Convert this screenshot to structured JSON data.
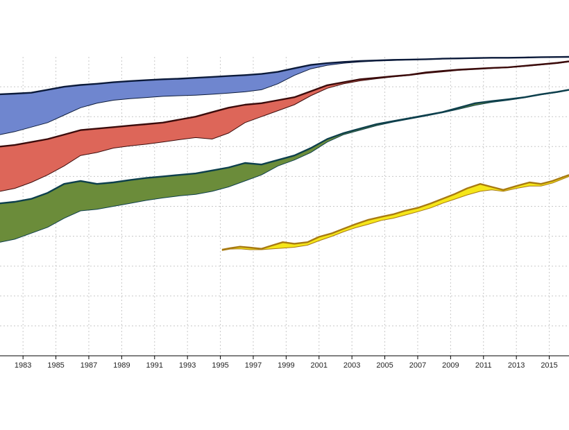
{
  "chart_data": {
    "type": "area",
    "title": "",
    "xlabel": "",
    "ylabel": "",
    "xlim": [
      1981.6,
      2016.2
    ],
    "ylim": [
      0,
      100
    ],
    "grid": true,
    "x_ticks": [
      1983,
      1985,
      1987,
      1989,
      1991,
      1993,
      1995,
      1997,
      1999,
      2001,
      2003,
      2005,
      2007,
      2009,
      2011,
      2013,
      2015
    ],
    "x_tick_labels": [
      "1983",
      "1985",
      "1987",
      "1989",
      "1991",
      "1993",
      "1995",
      "1997",
      "1999",
      "2001",
      "2003",
      "2005",
      "2007",
      "2009",
      "2011",
      "2013",
      "2015"
    ],
    "series": [
      {
        "color": "#6f86cf",
        "edge_color": "#0b1a3a",
        "x": [
          1981.6,
          1982.5,
          1983.5,
          1984.5,
          1985.5,
          1986.5,
          1987.5,
          1988.5,
          1989.5,
          1990.5,
          1991.5,
          1992.5,
          1993.5,
          1994.5,
          1995.5,
          1996.5,
          1997.5,
          1998.5,
          1999.5,
          2000.5,
          2001.5,
          2002.5,
          2003.5,
          2004.5,
          2005.5,
          2006.5,
          2007.5,
          2008.5,
          2009.5,
          2010.5,
          2011.5,
          2012.5,
          2013.5,
          2014.5,
          2015.5,
          2016.2
        ],
        "upper": [
          87.5,
          87.7,
          88.0,
          89.0,
          90.0,
          90.6,
          91.0,
          91.5,
          91.9,
          92.2,
          92.5,
          92.7,
          93.0,
          93.3,
          93.6,
          93.9,
          94.3,
          95.0,
          96.2,
          97.3,
          97.9,
          98.3,
          98.6,
          98.8,
          99.0,
          99.1,
          99.2,
          99.4,
          99.5,
          99.6,
          99.7,
          99.7,
          99.8,
          99.9,
          99.95,
          100.0
        ],
        "lower": [
          74.0,
          75.0,
          76.5,
          78.0,
          80.5,
          83.0,
          84.5,
          85.5,
          86.0,
          86.4,
          86.8,
          87.0,
          87.2,
          87.5,
          87.9,
          88.3,
          89.0,
          91.0,
          93.8,
          96.0,
          97.2,
          97.9,
          98.3,
          98.6,
          98.8,
          99.0,
          99.1,
          99.3,
          99.4,
          99.5,
          99.6,
          99.7,
          99.7,
          99.8,
          99.9,
          100.0
        ]
      },
      {
        "color": "#dd6659",
        "edge_color": "#3b0b0b",
        "x": [
          1981.6,
          1982.5,
          1983.5,
          1984.5,
          1985.5,
          1986.5,
          1987.5,
          1988.5,
          1989.5,
          1990.5,
          1991.5,
          1992.5,
          1993.5,
          1994.5,
          1995.5,
          1996.5,
          1997.5,
          1998.5,
          1999.5,
          2000.5,
          2001.5,
          2002.5,
          2003.5,
          2004.5,
          2005.5,
          2006.5,
          2007.5,
          2008.5,
          2009.5,
          2010.5,
          2011.5,
          2012.5,
          2013.5,
          2014.5,
          2015.5,
          2016.2
        ],
        "upper": [
          70.0,
          70.5,
          71.5,
          72.5,
          74.0,
          75.5,
          76.0,
          76.5,
          77.0,
          77.5,
          78.0,
          79.0,
          80.0,
          81.5,
          83.0,
          84.0,
          84.5,
          85.5,
          86.5,
          88.5,
          90.5,
          91.5,
          92.5,
          93.0,
          93.5,
          94.0,
          94.8,
          95.3,
          95.7,
          96.0,
          96.3,
          96.5,
          97.0,
          97.5,
          98.0,
          98.5
        ],
        "lower": [
          55.0,
          56.0,
          58.0,
          60.5,
          63.5,
          67.0,
          68.0,
          69.5,
          70.2,
          70.8,
          71.5,
          72.3,
          73.0,
          72.5,
          74.5,
          78.0,
          80.0,
          82.0,
          84.0,
          87.0,
          89.5,
          91.0,
          92.0,
          92.7,
          93.3,
          93.8,
          94.5,
          95.0,
          95.5,
          95.8,
          96.1,
          96.4,
          96.8,
          97.3,
          97.8,
          98.3
        ]
      },
      {
        "color": "#6b8c3a",
        "edge_color": "#0d3f4c",
        "x": [
          1981.6,
          1982.5,
          1983.5,
          1984.5,
          1985.5,
          1986.5,
          1987.5,
          1988.5,
          1989.5,
          1990.5,
          1991.5,
          1992.5,
          1993.5,
          1994.5,
          1995.5,
          1996.5,
          1997.5,
          1998.5,
          1999.5,
          2000.5,
          2001.5,
          2002.5,
          2003.5,
          2004.5,
          2005.5,
          2006.5,
          2007.5,
          2008.5,
          2009.5,
          2010.5,
          2011.5,
          2012.5,
          2013.5,
          2014.5,
          2015.5,
          2016.2
        ],
        "upper": [
          51.0,
          51.5,
          52.5,
          54.5,
          57.5,
          58.5,
          57.5,
          58.0,
          58.8,
          59.5,
          60.0,
          60.5,
          61.0,
          62.0,
          63.0,
          64.5,
          64.0,
          65.5,
          67.0,
          69.5,
          72.5,
          74.5,
          76.0,
          77.5,
          78.5,
          79.5,
          80.5,
          81.5,
          83.0,
          84.5,
          85.2,
          85.8,
          86.5,
          87.5,
          88.3,
          89.0
        ],
        "lower": [
          38.0,
          39.0,
          41.0,
          43.0,
          46.0,
          48.5,
          49.0,
          50.0,
          51.0,
          52.0,
          52.8,
          53.5,
          54.0,
          55.0,
          56.5,
          58.5,
          60.5,
          63.5,
          65.5,
          68.0,
          71.5,
          74.0,
          75.5,
          77.0,
          78.2,
          79.2,
          80.2,
          81.3,
          82.5,
          83.8,
          84.8,
          85.5,
          86.3,
          87.3,
          88.1,
          88.8
        ]
      },
      {
        "color": "#f5e619",
        "edge_color": "#a87a12",
        "x": [
          1995.1,
          1995.6,
          1996.2,
          1996.8,
          1997.5,
          1998.2,
          1998.8,
          1999.5,
          2000.3,
          2001.0,
          2001.8,
          2002.5,
          2003.2,
          2004.0,
          2004.8,
          2005.5,
          2006.2,
          2007.0,
          2007.8,
          2008.5,
          2009.2,
          2010.0,
          2010.8,
          2011.5,
          2012.2,
          2013.0,
          2013.8,
          2014.5,
          2015.2,
          2016.2
        ],
        "upper": [
          35.5,
          36.0,
          36.5,
          36.2,
          35.8,
          37.0,
          38.0,
          37.5,
          38.0,
          39.8,
          41.0,
          42.5,
          44.0,
          45.5,
          46.5,
          47.3,
          48.5,
          49.5,
          51.0,
          52.5,
          54.0,
          56.0,
          57.5,
          56.5,
          55.5,
          56.8,
          58.0,
          57.5,
          58.5,
          60.5
        ],
        "lower": [
          35.2,
          35.7,
          35.8,
          35.5,
          35.5,
          35.8,
          36.0,
          36.3,
          37.0,
          38.5,
          40.0,
          41.5,
          42.8,
          44.0,
          45.3,
          46.0,
          47.0,
          48.2,
          49.5,
          51.0,
          52.3,
          53.8,
          55.0,
          55.5,
          55.0,
          56.0,
          56.8,
          56.8,
          57.8,
          60.0
        ]
      }
    ]
  }
}
